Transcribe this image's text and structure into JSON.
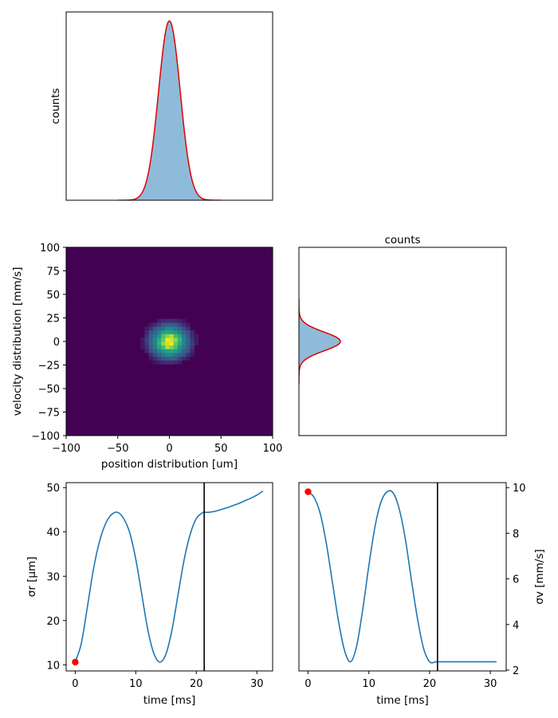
{
  "colors": {
    "hist_fill": "#8fbbda",
    "fit_line": "#e00000",
    "series_line": "#1f77b4",
    "marker": "#ff0000",
    "event_line": "#000000",
    "heatmap_background": "#440154"
  },
  "chart_data": [
    {
      "panel": "top-left",
      "type": "area",
      "ylabel": "counts",
      "x_ticks_shown": false,
      "y_ticks_shown": false,
      "xlim": [
        -100,
        100
      ],
      "ylim": [
        0,
        1.05
      ],
      "center": 0,
      "sigma": 10.5,
      "peak": 1.0,
      "x": [
        -50,
        -40,
        -30,
        -25,
        -20,
        -15,
        -10,
        -5,
        0,
        5,
        10,
        15,
        20,
        25,
        30,
        40,
        50
      ],
      "histogram": [
        0.0,
        0.0,
        0.02,
        0.06,
        0.16,
        0.36,
        0.63,
        0.89,
        1.0,
        0.89,
        0.63,
        0.36,
        0.16,
        0.06,
        0.02,
        0.0,
        0.0
      ],
      "fit_series": "Gaussian fit"
    },
    {
      "panel": "middle-left",
      "type": "heatmap",
      "xlabel": "position distribution [um]",
      "ylabel": "velocity distribution [mm/s]",
      "xlim": [
        -100,
        100
      ],
      "ylim": [
        -100,
        100
      ],
      "x_ticks": [
        "−100",
        "−50",
        "0",
        "50",
        "100"
      ],
      "y_ticks": [
        "100",
        "75",
        "50",
        "25",
        "0",
        "−25",
        "−50",
        "−75",
        "−100"
      ],
      "x_tick_values": [
        -100,
        -50,
        0,
        50,
        100
      ],
      "y_tick_values": [
        100,
        75,
        50,
        25,
        0,
        -25,
        -50,
        -75,
        -100
      ],
      "center": [
        0,
        0
      ],
      "sigma_x": 10.5,
      "sigma_y": 10.0,
      "colormap": "viridis"
    },
    {
      "panel": "middle-right",
      "type": "area",
      "title": "counts",
      "orientation": "horizontal",
      "x_ticks_shown": false,
      "y_ticks_shown": false,
      "ylim": [
        -100,
        100
      ],
      "center": 0,
      "sigma": 10.0,
      "peak_fraction_of_width": 0.2
    },
    {
      "panel": "bottom-left",
      "type": "line",
      "xlabel": "time [ms]",
      "ylabel": "σr [μm]",
      "xlim": [
        -1.5,
        32.6
      ],
      "ylim": [
        8.6,
        51.1
      ],
      "x_ticks": [
        "0",
        "10",
        "20",
        "30"
      ],
      "y_ticks": [
        "10",
        "20",
        "30",
        "40",
        "50"
      ],
      "x_tick_values": [
        0,
        10,
        20,
        30
      ],
      "y_tick_values": [
        10,
        20,
        30,
        40,
        50
      ],
      "x": [
        0,
        1,
        2,
        3,
        4,
        5,
        6,
        7,
        8,
        9,
        10,
        11,
        12,
        13,
        14,
        15,
        16,
        17,
        18,
        19,
        20,
        21,
        21.3,
        22,
        23,
        24,
        25,
        26,
        27,
        28,
        29,
        30,
        31
      ],
      "y": [
        10.6,
        14.8,
        23.0,
        31.5,
        37.8,
        41.8,
        43.9,
        44.4,
        43.0,
        39.8,
        33.8,
        25.8,
        17.8,
        12.5,
        10.6,
        12.5,
        18.0,
        26.0,
        33.8,
        39.5,
        43.0,
        44.3,
        44.4,
        44.4,
        44.6,
        45.0,
        45.4,
        45.9,
        46.4,
        47.0,
        47.6,
        48.3,
        49.2
      ],
      "vertical_line_x": 21.3,
      "marker": {
        "x": 0,
        "y": 10.6
      }
    },
    {
      "panel": "bottom-right",
      "type": "line",
      "xlabel": "time [ms]",
      "ylabel": "σv [mm/s]",
      "ylabel_position": "right",
      "xlim": [
        -1.5,
        32.6
      ],
      "ylim": [
        2.0,
        10.25
      ],
      "x_ticks": [
        "0",
        "10",
        "20",
        "30"
      ],
      "y_ticks": [
        "2",
        "4",
        "6",
        "8",
        "10"
      ],
      "x_tick_values": [
        0,
        10,
        20,
        30
      ],
      "y_tick_values": [
        2,
        4,
        6,
        8,
        10
      ],
      "x": [
        0,
        1,
        2,
        3,
        4,
        5,
        6,
        7,
        8,
        9,
        10,
        11,
        12,
        13,
        14,
        15,
        16,
        17,
        18,
        19,
        20,
        21,
        21.3,
        22,
        25,
        28,
        31
      ],
      "y": [
        9.85,
        9.6,
        8.9,
        7.6,
        5.9,
        4.2,
        2.9,
        2.4,
        3.1,
        4.7,
        6.6,
        8.3,
        9.4,
        9.85,
        9.8,
        9.1,
        7.8,
        6.0,
        4.3,
        3.0,
        2.4,
        2.4,
        2.4,
        2.4,
        2.4,
        2.4,
        2.4
      ],
      "vertical_line_x": 21.3,
      "marker": {
        "x": 0,
        "y": 9.85
      }
    }
  ]
}
